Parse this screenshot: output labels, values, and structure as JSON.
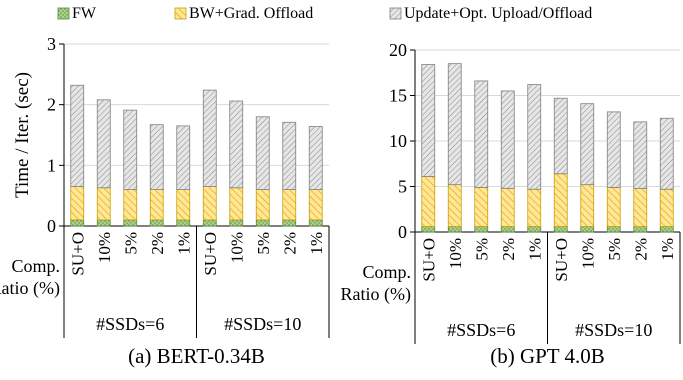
{
  "legend": [
    {
      "label": "FW",
      "color": "#a9d18e",
      "pattern": "dots"
    },
    {
      "label": "BW+Grad. Offload",
      "color": "#ffd966",
      "pattern": "diagonal"
    },
    {
      "label": "Update+Opt. Upload/Offload",
      "color": "#bfbfbf",
      "pattern": "crosshatch"
    }
  ],
  "chart_data": [
    {
      "type": "bar",
      "stacked": true,
      "title": "(a) BERT-0.34B",
      "ylabel": "Time / Iter. (sec)",
      "xlabel": "Comp. Ratio (%)",
      "ylim": [
        0,
        3
      ],
      "yticks": [
        "0",
        "1",
        "2",
        "3"
      ],
      "grid": true,
      "groups": [
        {
          "label": "#SSDs=6",
          "categories": [
            "SU+O",
            "10%",
            "5%",
            "2%",
            "1%"
          ]
        },
        {
          "label": "#SSDs=10",
          "categories": [
            "SU+O",
            "10%",
            "5%",
            "2%",
            "1%"
          ]
        }
      ],
      "categories": [
        "SU+O",
        "10%",
        "5%",
        "2%",
        "1%",
        "SU+O",
        "10%",
        "5%",
        "2%",
        "1%"
      ],
      "series": [
        {
          "name": "FW",
          "values": [
            0.1,
            0.1,
            0.1,
            0.1,
            0.1,
            0.1,
            0.1,
            0.1,
            0.1,
            0.1
          ]
        },
        {
          "name": "BW+Grad. Offload",
          "values": [
            0.55,
            0.53,
            0.5,
            0.5,
            0.5,
            0.55,
            0.53,
            0.5,
            0.5,
            0.5
          ]
        },
        {
          "name": "Update+Opt. Upload/Offload",
          "values": [
            1.67,
            1.45,
            1.31,
            1.07,
            1.05,
            1.59,
            1.43,
            1.2,
            1.11,
            1.04
          ]
        }
      ]
    },
    {
      "type": "bar",
      "stacked": true,
      "title": "(b) GPT 4.0B",
      "ylabel": "",
      "xlabel": "Comp. Ratio (%)",
      "ylim": [
        0,
        20
      ],
      "yticks": [
        "0",
        "5",
        "10",
        "15",
        "20"
      ],
      "grid": true,
      "groups": [
        {
          "label": "#SSDs=6",
          "categories": [
            "SU+O",
            "10%",
            "5%",
            "2%",
            "1%"
          ]
        },
        {
          "label": "#SSDs=10",
          "categories": [
            "SU+O",
            "10%",
            "5%",
            "2%",
            "1%"
          ]
        }
      ],
      "categories": [
        "SU+O",
        "10%",
        "5%",
        "2%",
        "1%",
        "SU+O",
        "10%",
        "5%",
        "2%",
        "1%"
      ],
      "series": [
        {
          "name": "FW",
          "values": [
            0.6,
            0.6,
            0.6,
            0.6,
            0.6,
            0.6,
            0.6,
            0.6,
            0.6,
            0.6
          ]
        },
        {
          "name": "BW+Grad. Offload",
          "values": [
            5.5,
            4.6,
            4.3,
            4.2,
            4.1,
            5.8,
            4.6,
            4.3,
            4.2,
            4.1
          ]
        },
        {
          "name": "Update+Opt. Upload/Offload",
          "values": [
            12.3,
            13.3,
            11.7,
            10.7,
            11.5,
            8.3,
            8.9,
            8.3,
            7.3,
            7.8
          ]
        }
      ]
    }
  ]
}
